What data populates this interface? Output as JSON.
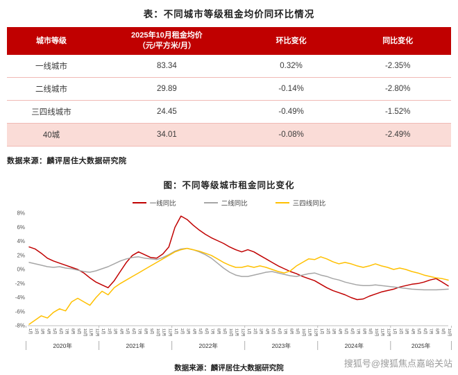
{
  "page": {
    "table_title": "表：不同城市等级租金均价同环比情况",
    "table_source": "数据来源：麟评居住大数据研究院",
    "chart_title": "图：不同等级城市租金同比变化",
    "chart_source": "数据来源：麟评居住大数据研究院",
    "watermark": "搜狐号@搜狐焦点嘉峪关站"
  },
  "table": {
    "headers": [
      "城市等级",
      "2025年10月租金均价（元/平方米/月）",
      "环比变化",
      "同比变化"
    ],
    "price_header_line1": "2025年10月租金均价",
    "price_header_line2": "（元/平方米/月）",
    "header_bg": "#c00000",
    "highlight_bg": "#fadcd7",
    "rows": [
      {
        "tier": "一线城市",
        "price": "83.34",
        "mom": "0.32%",
        "yoy": "-2.35%"
      },
      {
        "tier": "二线城市",
        "price": "29.89",
        "mom": "-0.14%",
        "yoy": "-2.80%"
      },
      {
        "tier": "三四线城市",
        "price": "24.45",
        "mom": "-0.49%",
        "yoy": "-1.52%"
      },
      {
        "tier": "40城",
        "price": "34.01",
        "mom": "-0.08%",
        "yoy": "-2.49%"
      }
    ]
  },
  "chart_data": {
    "type": "line",
    "title": "图：不同等级城市租金同比变化",
    "xlabel": "",
    "ylabel": "",
    "ylim": [
      -8,
      8
    ],
    "ytick_step": 2,
    "ytick_suffix": "%",
    "grid": false,
    "legend_position": "top",
    "month_label_suffix": "月",
    "years": [
      {
        "label": "2020年",
        "months": 12
      },
      {
        "label": "2021年",
        "months": 12
      },
      {
        "label": "2022年",
        "months": 12
      },
      {
        "label": "2023年",
        "months": 12
      },
      {
        "label": "2024年",
        "months": 12
      },
      {
        "label": "2025年",
        "months": 10
      }
    ],
    "series": [
      {
        "name": "一线同比",
        "color": "#c00000",
        "values": [
          3.2,
          2.9,
          2.3,
          1.6,
          1.2,
          0.9,
          0.6,
          0.3,
          0,
          -0.5,
          -1.2,
          -1.8,
          -2.2,
          -2.6,
          -1.6,
          -0.3,
          1,
          2,
          2.5,
          2.1,
          1.7,
          1.6,
          2.2,
          3.2,
          6,
          7.6,
          7.1,
          6.3,
          5.6,
          5,
          4.5,
          4.1,
          3.7,
          3.2,
          2.8,
          2.5,
          2.8,
          2.5,
          2,
          1.5,
          1,
          0.5,
          0.1,
          -0.3,
          -0.6,
          -1,
          -1.3,
          -1.6,
          -2.1,
          -2.6,
          -3,
          -3.3,
          -3.6,
          -4,
          -4.3,
          -4.2,
          -3.8,
          -3.5,
          -3.2,
          -3,
          -2.8,
          -2.5,
          -2.3,
          -2.1,
          -2,
          -1.8,
          -1.5,
          -1.3,
          -1.8,
          -2.35
        ]
      },
      {
        "name": "二线同比",
        "color": "#a6a6a6",
        "values": [
          1,
          0.8,
          0.6,
          0.4,
          0.3,
          0.4,
          0.2,
          0.1,
          -0.1,
          -0.3,
          -0.4,
          -0.2,
          0.1,
          0.4,
          0.8,
          1.2,
          1.5,
          1.7,
          1.8,
          1.6,
          1.5,
          1.4,
          1.7,
          2.1,
          2.6,
          2.9,
          3,
          2.8,
          2.5,
          2.1,
          1.6,
          0.9,
          0.2,
          -0.4,
          -0.8,
          -1,
          -1,
          -0.8,
          -0.6,
          -0.4,
          -0.3,
          -0.5,
          -0.7,
          -0.9,
          -1,
          -0.8,
          -0.6,
          -0.5,
          -0.8,
          -1,
          -1.3,
          -1.5,
          -1.8,
          -2,
          -2.2,
          -2.3,
          -2.3,
          -2.2,
          -2.3,
          -2.4,
          -2.5,
          -2.6,
          -2.7,
          -2.8,
          -2.85,
          -2.9,
          -2.9,
          -2.9,
          -2.85,
          -2.8
        ]
      },
      {
        "name": "三四线同比",
        "color": "#ffc000",
        "values": [
          -7.8,
          -7.2,
          -6.6,
          -6.9,
          -6.1,
          -5.6,
          -5.9,
          -4.6,
          -4.1,
          -4.6,
          -5.1,
          -4,
          -3.1,
          -3.6,
          -2.6,
          -2,
          -1.5,
          -1,
          -0.5,
          0,
          0.5,
          1,
          1.5,
          2,
          2.5,
          2.8,
          3,
          2.8,
          2.6,
          2.3,
          2,
          1.5,
          1,
          0.6,
          0.3,
          0.3,
          0.5,
          0.3,
          0.5,
          0.3,
          0,
          -0.3,
          -0.5,
          -0.2,
          0.5,
          1,
          1.5,
          1.4,
          1.8,
          1.5,
          1.1,
          0.8,
          1,
          0.8,
          0.5,
          0.3,
          0.5,
          0.8,
          0.5,
          0.3,
          0,
          0.2,
          0,
          -0.3,
          -0.5,
          -0.8,
          -1,
          -1.2,
          -1.3,
          -1.52
        ]
      }
    ]
  }
}
